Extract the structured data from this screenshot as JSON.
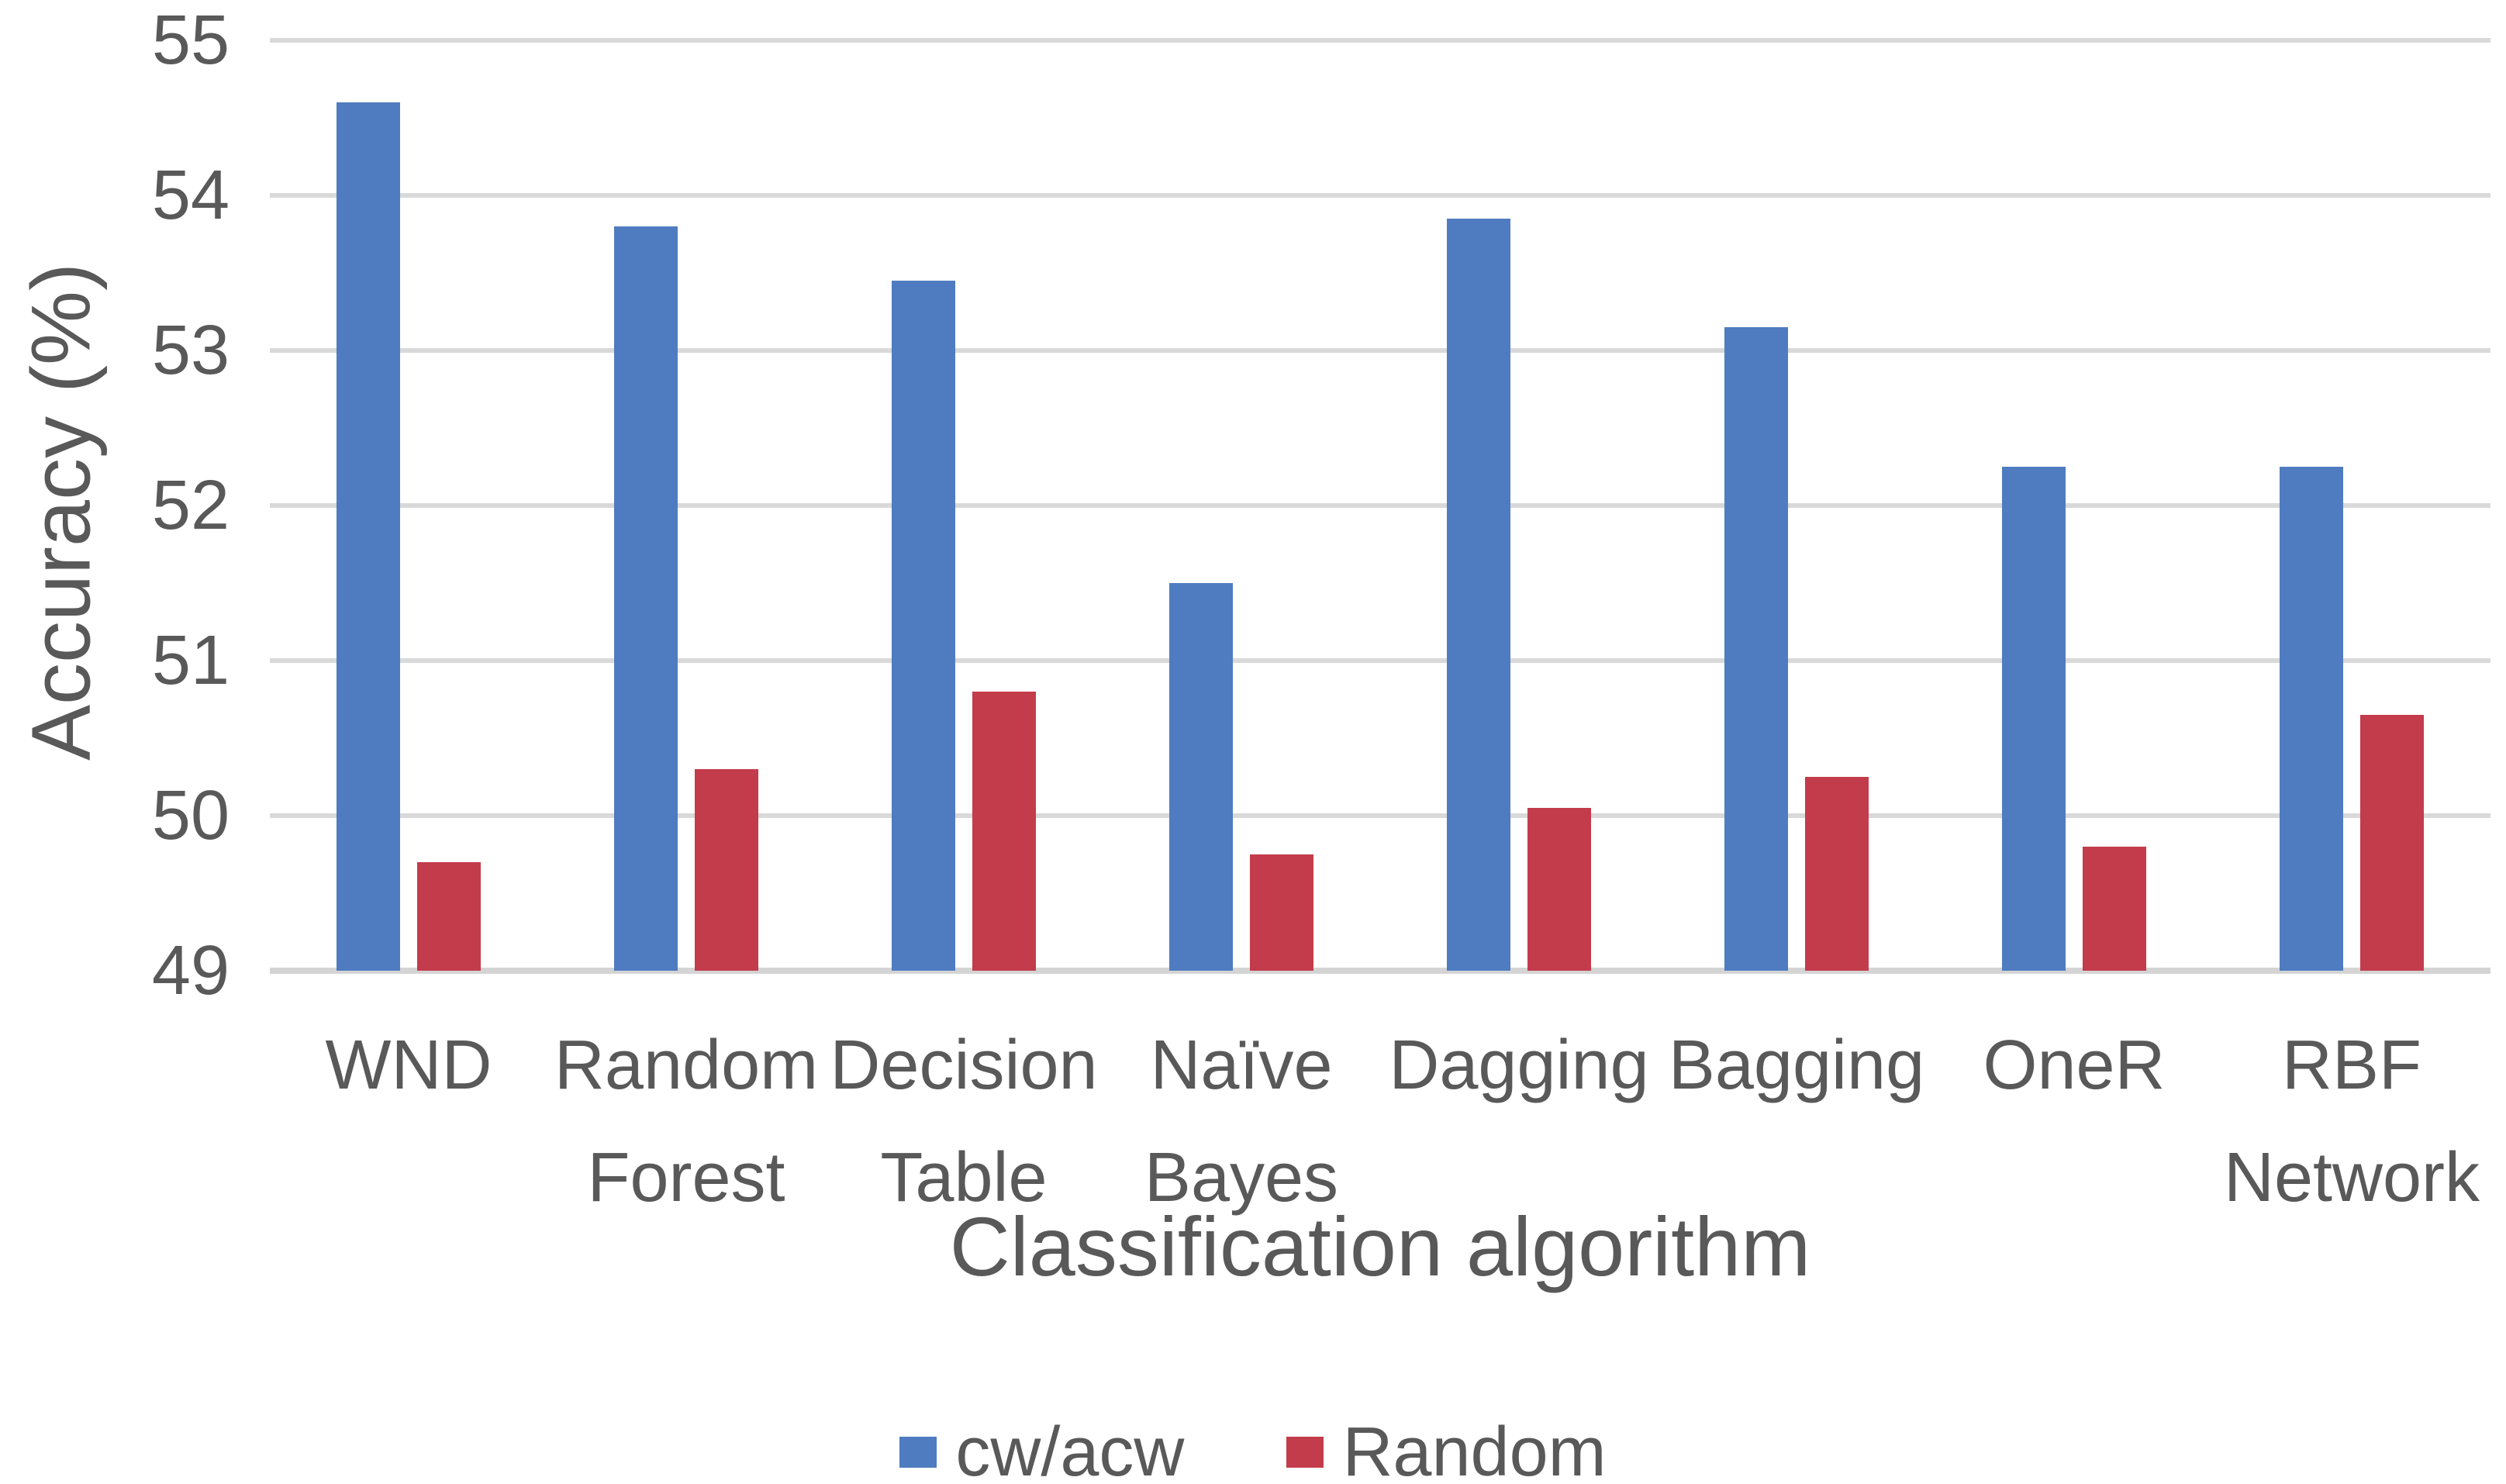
{
  "chart_data": {
    "type": "bar",
    "categories": [
      "WND",
      "Random Forest",
      "Decision Table",
      "Naïve Bayes",
      "Dagging",
      "Bagging",
      "OneR",
      "RBF Network"
    ],
    "series": [
      {
        "name": "cw/acw",
        "color": "#4F7CC0",
        "values": [
          54.6,
          53.8,
          53.45,
          51.5,
          53.85,
          53.15,
          52.25,
          52.25
        ]
      },
      {
        "name": "Random",
        "color": "#C33C4B",
        "values": [
          49.7,
          50.3,
          50.8,
          49.75,
          50.05,
          50.25,
          49.8,
          50.65
        ]
      }
    ],
    "xlabel": "Classification algorithm",
    "ylabel": "Accuracy (%)",
    "ylim": [
      49,
      55
    ],
    "ytick_step": 1,
    "yticks": [
      55,
      54,
      53,
      52,
      51,
      50,
      49
    ],
    "grid": true,
    "legend_position": "bottom",
    "text_color": "#595959",
    "gridline_color": "#D9D9D9",
    "background_color": "#FFFFFF"
  }
}
